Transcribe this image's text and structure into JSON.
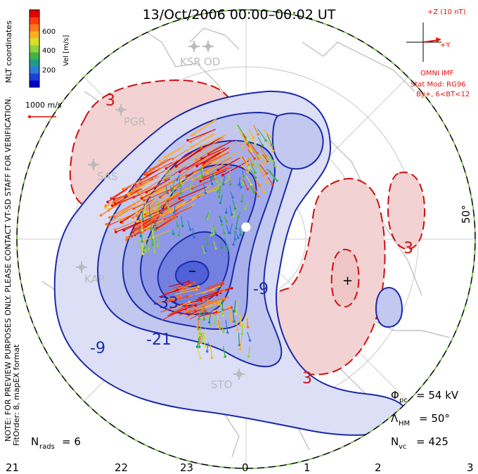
{
  "title": "13/Oct/2006 00:00–00:02 UT",
  "colorbar": {
    "label": "Vel [m/s]",
    "ticks": [
      "600",
      "400",
      "200"
    ],
    "colors": [
      "#0000cc",
      "#1c3fd8",
      "#2f7ad6",
      "#1f9a8a",
      "#3fb34a",
      "#8fd23c",
      "#d8df2e",
      "#ffb020",
      "#ff7a1a",
      "#ff3a10",
      "#e00000"
    ]
  },
  "coord_label": "MLT coordinates",
  "scale": {
    "label": "1000 m/s",
    "color": "#e01010"
  },
  "imf": {
    "z_label": "+Z (10 nT)",
    "y_label": "+Y",
    "source": "OMNI IMF",
    "stat_mod": "Stat Mod: RG96",
    "condition": "By+, 6<BT<12",
    "color": "#e01010"
  },
  "notes": {
    "line1": "NOTE: FOR PREVIEW PURPOSES ONLY. PLEASE CONTACT VT-SD STAFF FOR VERIFICATION.",
    "line2": "FitOrder: 8, mapEX format"
  },
  "stats": {
    "pcp_symbol": "Φ",
    "pcp_sub": "pc",
    "pcp_value": "= 54 kV",
    "hm_symbol": "Λ",
    "hm_sub": "HM",
    "hm_value": "= 50°",
    "nvc_symbol": "N",
    "nvc_sub": "vc",
    "nvc_value": "= 425",
    "nrads_symbol": "N",
    "nrads_sub": "rads",
    "nrads_value": "= 6"
  },
  "latitude_label": "50°",
  "radars": [
    "KSR",
    "OD",
    "PGR",
    "SAS",
    "KAP",
    "STO"
  ],
  "contour_labels": {
    "neg": [
      "-33",
      "-21",
      "-9",
      "-9"
    ],
    "pos": [
      "3",
      "3",
      "3"
    ]
  },
  "extrema": {
    "min": "–",
    "max": "+"
  },
  "mlt_axis": [
    "21",
    "22",
    "23",
    "0",
    "1",
    "2",
    "3"
  ],
  "colors": {
    "neg_contour": "#1a2aa8",
    "pos_contour": "#cc1010",
    "neg_fill": "#6a78e0",
    "pos_fill": "#f0c8c8",
    "coast": "#b8b8b8",
    "boundary_dash": "#7ad040"
  }
}
